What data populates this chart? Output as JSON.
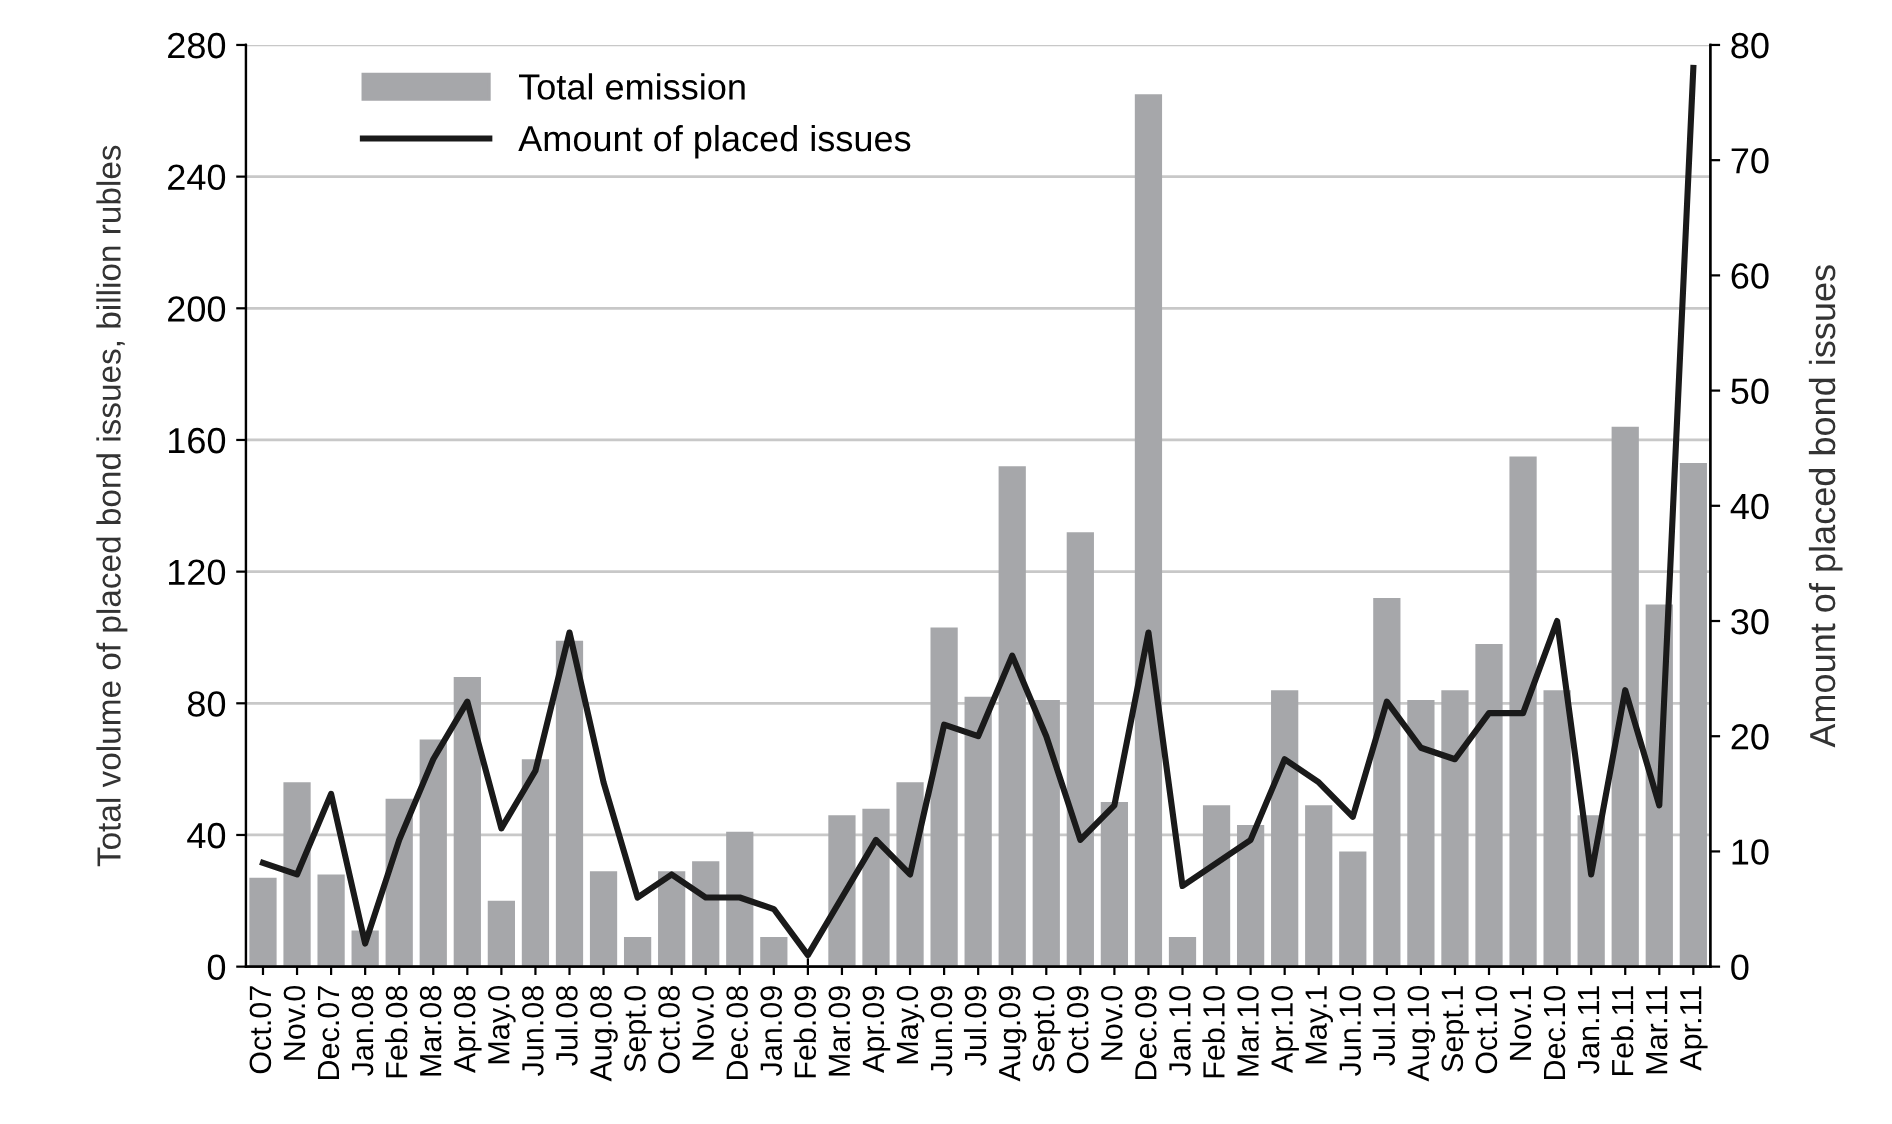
{
  "chart_data": {
    "type": "bar",
    "categories": [
      "Oct.07",
      "Nov.0",
      "Dec.07",
      "Jan.08",
      "Feb.08",
      "Mar.08",
      "Apr.08",
      "May.0",
      "Jun.08",
      "Jul.08",
      "Aug.08",
      "Sept.0",
      "Oct.08",
      "Nov.0",
      "Dec.08",
      "Jan.09",
      "Feb.09",
      "Mar.09",
      "Apr.09",
      "May.0",
      "Jun.09",
      "Jul.09",
      "Aug.09",
      "Sept.0",
      "Oct.09",
      "Nov.0",
      "Dec.09",
      "Jan.10",
      "Feb.10",
      "Mar.10",
      "Apr.10",
      "May.1",
      "Jun.10",
      "Jul.10",
      "Aug.10",
      "Sept.1",
      "Oct.10",
      "Nov.1",
      "Dec.10",
      "Jan.11",
      "Feb.11",
      "Mar.11",
      "Apr.11"
    ],
    "series": [
      {
        "name": "Total emission",
        "color": "#a6a7aa",
        "values": [
          27,
          56,
          28,
          11,
          51,
          69,
          88,
          20,
          63,
          99,
          29,
          9,
          29,
          32,
          41,
          9,
          null,
          46,
          48,
          56,
          103,
          82,
          152,
          81,
          132,
          50,
          265,
          9,
          49,
          43,
          84,
          49,
          35,
          112,
          81,
          84,
          98,
          155,
          84,
          46,
          164,
          110,
          153
        ]
      },
      {
        "name": "Amount of placed issues",
        "type": "line",
        "axis": "y2",
        "color": "#1a1a1a",
        "values": [
          9,
          8,
          15,
          2,
          11,
          18,
          23,
          12,
          17,
          29,
          16,
          6,
          8,
          6,
          6,
          5,
          1,
          6,
          11,
          8,
          21,
          20,
          27,
          20,
          11,
          14,
          29,
          7,
          9,
          11,
          18,
          16,
          13,
          23,
          19,
          18,
          22,
          22,
          30,
          8,
          24,
          14,
          78
        ]
      }
    ],
    "ylabel": "Total volume of placed bond issues, billion rubles",
    "y2label": "Amount of placed bond issues",
    "ylim": [
      0,
      280
    ],
    "yticks": [
      0,
      40,
      80,
      120,
      160,
      200,
      240,
      280
    ],
    "y2lim": [
      0,
      80
    ],
    "y2ticks": [
      0,
      10,
      20,
      30,
      40,
      50,
      60,
      70,
      80
    ],
    "grid": "y",
    "legend": "top left",
    "line_style": "solid",
    "marker": "none"
  }
}
